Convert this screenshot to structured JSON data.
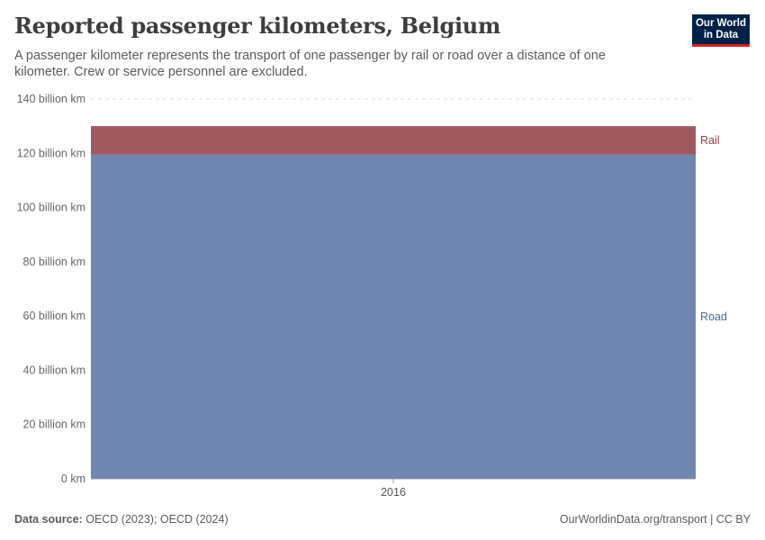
{
  "title": "Reported passenger kilometers, Belgium",
  "subtitle": "A passenger kilometer represents the transport of one passenger by rail or road over a distance of one kilometer. Crew or service personnel are excluded.",
  "logo": {
    "line1": "Our World",
    "line2": "in Data"
  },
  "footer": {
    "source_label": "Data source:",
    "source_text": "OECD (2023); OECD (2024)",
    "url_text": "OurWorldinData.org/transport | CC BY"
  },
  "colors": {
    "road": "#6f87b0",
    "rail": "#a05a5f",
    "road_label": "#4c6a9c",
    "rail_label": "#973a44",
    "grid": "#dddddd",
    "axis": "#666666"
  },
  "chart_data": {
    "type": "area",
    "stacked": true,
    "x": [
      2016
    ],
    "x_tick_labels": [
      "2016"
    ],
    "series": [
      {
        "name": "Road",
        "values": [
          119.5
        ]
      },
      {
        "name": "Rail",
        "values": [
          10.5
        ]
      }
    ],
    "ylim": [
      0,
      140
    ],
    "y_ticks": [
      0,
      20,
      40,
      60,
      80,
      100,
      120,
      140
    ],
    "y_tick_labels": [
      "0 km",
      "20 billion km",
      "40 billion km",
      "60 billion km",
      "80 billion km",
      "100 billion km",
      "120 billion km",
      "140 billion km"
    ],
    "grid": true,
    "legend_placement": "right, inline labels"
  }
}
